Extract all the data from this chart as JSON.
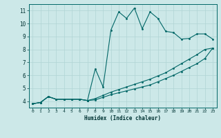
{
  "xlabel": "Humidex (Indice chaleur)",
  "bg_color": "#cce8e8",
  "line_color": "#006666",
  "grid_color": "#b0d4d4",
  "xlim": [
    -0.5,
    23.5
  ],
  "ylim": [
    3.5,
    11.5
  ],
  "xticks": [
    0,
    1,
    2,
    3,
    4,
    5,
    6,
    7,
    8,
    9,
    10,
    11,
    12,
    13,
    14,
    15,
    16,
    17,
    18,
    19,
    20,
    21,
    22,
    23
  ],
  "yticks": [
    4,
    5,
    6,
    7,
    8,
    9,
    10,
    11
  ],
  "series": [
    {
      "x": [
        0,
        1,
        2,
        3,
        4,
        5,
        6,
        7,
        8,
        9,
        10,
        11,
        12,
        13,
        14,
        15,
        16,
        17,
        18,
        19,
        20,
        21,
        22,
        23
      ],
      "y": [
        3.8,
        3.9,
        4.35,
        4.15,
        4.15,
        4.15,
        4.15,
        4.05,
        6.5,
        5.1,
        9.5,
        10.9,
        10.4,
        11.2,
        9.6,
        10.9,
        10.4,
        9.4,
        9.3,
        8.8,
        8.85,
        9.2,
        9.2,
        8.8
      ]
    },
    {
      "x": [
        0,
        1,
        2,
        3,
        4,
        5,
        6,
        7,
        8,
        9,
        10,
        11,
        12,
        13,
        14,
        15,
        16,
        17,
        18,
        19,
        20,
        21,
        22,
        23
      ],
      "y": [
        3.8,
        3.9,
        4.35,
        4.15,
        4.15,
        4.15,
        4.15,
        4.05,
        4.1,
        4.3,
        4.5,
        4.65,
        4.8,
        4.95,
        5.1,
        5.25,
        5.5,
        5.75,
        6.0,
        6.3,
        6.6,
        6.9,
        7.3,
        8.1
      ]
    },
    {
      "x": [
        0,
        1,
        2,
        3,
        4,
        5,
        6,
        7,
        8,
        9,
        10,
        11,
        12,
        13,
        14,
        15,
        16,
        17,
        18,
        19,
        20,
        21,
        22,
        23
      ],
      "y": [
        3.8,
        3.9,
        4.35,
        4.15,
        4.15,
        4.15,
        4.15,
        4.05,
        4.2,
        4.45,
        4.7,
        4.9,
        5.1,
        5.3,
        5.5,
        5.7,
        5.95,
        6.2,
        6.55,
        6.9,
        7.25,
        7.6,
        8.0,
        8.1
      ]
    }
  ],
  "marker": ".",
  "markersize": 3,
  "linewidth": 0.8,
  "tick_fontsize_x": 4.5,
  "tick_fontsize_y": 5.5
}
